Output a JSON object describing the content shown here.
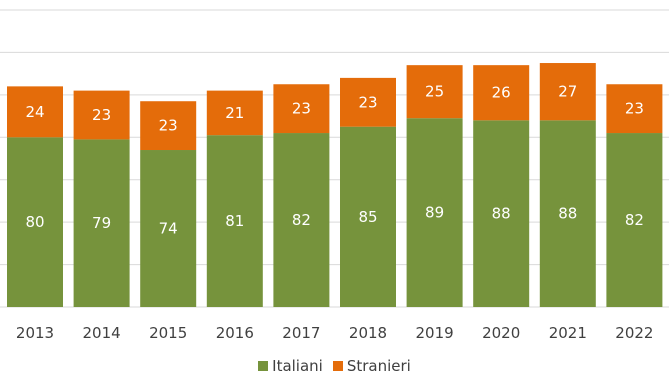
{
  "chart_data": {
    "type": "bar",
    "stacked": true,
    "categories": [
      "2013",
      "2014",
      "2015",
      "2016",
      "2017",
      "2018",
      "2019",
      "2020",
      "2021",
      "2022"
    ],
    "series": [
      {
        "name": "Italiani",
        "color": "#76933c",
        "values": [
          80,
          79,
          74,
          81,
          82,
          85,
          89,
          88,
          88,
          82
        ]
      },
      {
        "name": "Stranieri",
        "color": "#e46c0a",
        "values": [
          24,
          23,
          23,
          21,
          23,
          23,
          25,
          26,
          27,
          23
        ]
      }
    ],
    "ylim": [
      0,
      140
    ],
    "grid": true,
    "legend_position": "bottom"
  }
}
